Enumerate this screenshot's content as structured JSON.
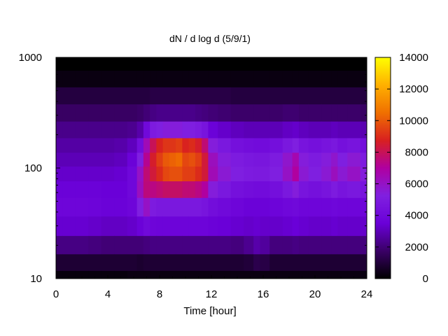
{
  "chart_data": {
    "type": "heatmap",
    "title": "dN / d log d (5/9/1)",
    "xlabel": "Time [hour]",
    "ylabel": "",
    "x": {
      "range": [
        0,
        24
      ],
      "ticks": [
        0,
        4,
        8,
        12,
        16,
        20,
        24
      ],
      "tick_labels": [
        "0",
        "4",
        "8",
        "12",
        "16",
        "20",
        "24"
      ]
    },
    "y": {
      "scale": "log",
      "range": [
        10,
        1000
      ],
      "ticks": [
        10,
        100,
        1000
      ],
      "tick_labels": [
        "10",
        "100",
        "1000"
      ]
    },
    "colorbar": {
      "range": [
        0,
        14000
      ],
      "ticks": [
        0,
        2000,
        4000,
        6000,
        8000,
        10000,
        12000,
        14000
      ],
      "tick_labels": [
        "0",
        "2000",
        "4000",
        "6000",
        "8000",
        "10000",
        "12000",
        "14000"
      ],
      "palette": [
        "#000000",
        "#3a0066",
        "#6a00d8",
        "#8020e0",
        "#b000a0",
        "#d82020",
        "#f07000",
        "#ffb000",
        "#ffff00"
      ]
    },
    "time_hours": [
      0,
      1,
      2,
      3,
      4,
      5,
      6,
      6.5,
      7,
      7.5,
      8,
      8.5,
      9,
      9.5,
      10,
      10.5,
      11,
      11.5,
      12,
      13,
      14,
      15,
      15.5,
      16,
      17,
      18,
      18.5,
      19,
      20,
      21,
      21.5,
      22,
      23,
      24
    ],
    "diameter_nm": [
      10,
      14,
      20,
      30,
      45,
      65,
      90,
      120,
      160,
      220,
      320,
      450,
      650,
      900
    ],
    "values": [
      [
        200,
        900,
        2200,
        3400,
        3800,
        3600,
        3300,
        3000,
        2700,
        2300,
        1700,
        1100,
        300,
        0
      ],
      [
        200,
        900,
        2200,
        3400,
        3800,
        3600,
        3300,
        3000,
        2700,
        2300,
        1700,
        1100,
        300,
        0
      ],
      [
        200,
        900,
        2200,
        3400,
        3800,
        3600,
        3300,
        3000,
        2700,
        2300,
        1700,
        1100,
        300,
        0
      ],
      [
        200,
        900,
        2100,
        3300,
        3700,
        3600,
        3300,
        3000,
        2700,
        2300,
        1700,
        1100,
        300,
        0
      ],
      [
        200,
        900,
        2000,
        3200,
        3600,
        3500,
        3300,
        3000,
        2700,
        2300,
        1700,
        1100,
        300,
        0
      ],
      [
        200,
        900,
        2000,
        3200,
        3600,
        3500,
        3400,
        3100,
        2800,
        2300,
        1700,
        1100,
        300,
        0
      ],
      [
        300,
        900,
        2000,
        3300,
        3800,
        3900,
        3900,
        3600,
        3100,
        2400,
        1700,
        1100,
        300,
        0
      ],
      [
        300,
        800,
        2000,
        3600,
        5200,
        6200,
        6000,
        5200,
        4200,
        2800,
        1800,
        1100,
        300,
        0
      ],
      [
        300,
        900,
        2100,
        4000,
        6000,
        7500,
        7600,
        7200,
        6400,
        4000,
        2000,
        1100,
        300,
        0
      ],
      [
        300,
        900,
        2200,
        3800,
        5000,
        7400,
        8400,
        8600,
        8000,
        5000,
        2200,
        1200,
        300,
        0
      ],
      [
        300,
        900,
        2200,
        3700,
        4800,
        7600,
        9000,
        9400,
        8800,
        5200,
        2300,
        1200,
        300,
        0
      ],
      [
        300,
        900,
        2200,
        3700,
        4800,
        7800,
        9600,
        10000,
        9200,
        5400,
        2300,
        1200,
        300,
        0
      ],
      [
        300,
        900,
        2200,
        3700,
        4800,
        7800,
        9800,
        10200,
        9200,
        5400,
        2300,
        1200,
        300,
        0
      ],
      [
        300,
        900,
        2200,
        3700,
        4800,
        7800,
        9800,
        10400,
        9400,
        5400,
        2300,
        1200,
        300,
        0
      ],
      [
        300,
        900,
        2200,
        3700,
        4800,
        7600,
        9400,
        9600,
        8800,
        5200,
        2300,
        1200,
        300,
        0
      ],
      [
        300,
        900,
        2200,
        3700,
        4800,
        7600,
        9400,
        9800,
        9000,
        5200,
        2300,
        1200,
        300,
        0
      ],
      [
        300,
        900,
        2200,
        3700,
        4800,
        7400,
        9000,
        9400,
        8600,
        5000,
        2200,
        1200,
        300,
        0
      ],
      [
        300,
        900,
        2200,
        3700,
        4600,
        7000,
        8400,
        8400,
        7600,
        4600,
        2100,
        1200,
        300,
        0
      ],
      [
        300,
        900,
        2200,
        3600,
        4200,
        5400,
        6400,
        6200,
        5400,
        3600,
        2000,
        1200,
        300,
        0
      ],
      [
        300,
        900,
        2200,
        3500,
        4000,
        4800,
        5600,
        5400,
        4800,
        3300,
        1900,
        1200,
        300,
        0
      ],
      [
        300,
        900,
        2100,
        3400,
        3800,
        4400,
        5200,
        5000,
        4400,
        3100,
        1800,
        1100,
        300,
        0
      ],
      [
        300,
        1000,
        2400,
        3300,
        3600,
        4200,
        5000,
        4800,
        4200,
        3000,
        1800,
        1100,
        300,
        0
      ],
      [
        300,
        1300,
        2800,
        3400,
        3600,
        4100,
        4900,
        4700,
        4100,
        3000,
        1800,
        1100,
        300,
        0
      ],
      [
        300,
        1200,
        2600,
        3300,
        3600,
        4100,
        4900,
        4700,
        4100,
        3000,
        1800,
        1100,
        300,
        0
      ],
      [
        300,
        900,
        2100,
        3300,
        3700,
        4300,
        5200,
        5000,
        4300,
        3000,
        1800,
        1100,
        300,
        0
      ],
      [
        300,
        900,
        2100,
        3400,
        3900,
        4800,
        6000,
        5800,
        4800,
        3200,
        1900,
        1100,
        300,
        0
      ],
      [
        300,
        900,
        2200,
        3500,
        4000,
        5400,
        7000,
        6600,
        5200,
        3300,
        1900,
        1100,
        300,
        0
      ],
      [
        300,
        900,
        2100,
        3400,
        3800,
        4600,
        5600,
        5400,
        4600,
        3100,
        1800,
        1100,
        300,
        0
      ],
      [
        300,
        900,
        2100,
        3300,
        3800,
        4400,
        5200,
        5000,
        4400,
        3000,
        1800,
        1100,
        300,
        0
      ],
      [
        300,
        900,
        2100,
        3300,
        3800,
        4600,
        5600,
        5400,
        4600,
        3000,
        1800,
        1100,
        300,
        0
      ],
      [
        300,
        900,
        2100,
        3400,
        3900,
        5000,
        6200,
        5800,
        4800,
        3100,
        1800,
        1100,
        300,
        0
      ],
      [
        300,
        900,
        2100,
        3300,
        3800,
        4600,
        5600,
        5200,
        4400,
        3000,
        1800,
        1100,
        300,
        0
      ],
      [
        300,
        900,
        2100,
        3300,
        3800,
        4800,
        6000,
        5600,
        4600,
        3000,
        1800,
        1100,
        300,
        0
      ],
      [
        300,
        900,
        2100,
        3300,
        3800,
        4600,
        5400,
        5000,
        4200,
        2900,
        1700,
        1100,
        300,
        0
      ]
    ],
    "grid": false,
    "legend": "colorbar-right"
  }
}
